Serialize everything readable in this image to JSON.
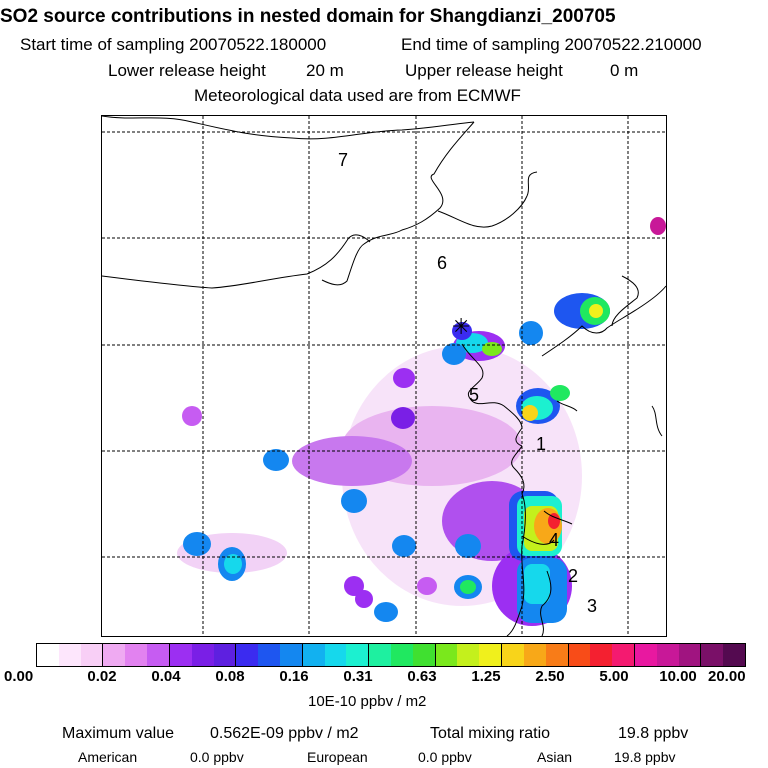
{
  "header": {
    "title": "SO2 source contributions in nested domain for Shangdianzi_200705",
    "start_label": "Start time of sampling 20070522.180000",
    "end_label": "End time of sampling 20070522.210000",
    "lower_label": "Lower release height",
    "lower_value": "20 m",
    "upper_label": "Upper release height",
    "upper_value": "0 m",
    "met_label": "Meteorological data used are from ECMWF"
  },
  "map": {
    "regions": [
      {
        "id": "7",
        "label": "7"
      },
      {
        "id": "6",
        "label": "6"
      },
      {
        "id": "5",
        "label": "5"
      },
      {
        "id": "1",
        "label": "1"
      },
      {
        "id": "4",
        "label": "4"
      },
      {
        "id": "2",
        "label": "2"
      },
      {
        "id": "3",
        "label": "3"
      }
    ],
    "receptor_symbol": "✳"
  },
  "colorbar": {
    "colors": [
      "#ffffff",
      "#fde6fc",
      "#f8cff6",
      "#efaaf2",
      "#e282f0",
      "#c65cf2",
      "#9c2ff2",
      "#7a1fe6",
      "#5e20e0",
      "#3b2bf0",
      "#1e56f0",
      "#1487f0",
      "#12b1f0",
      "#16d8ec",
      "#1cf0d0",
      "#1ef0a0",
      "#20e860",
      "#40e030",
      "#7ae81c",
      "#c4f01c",
      "#f0f01c",
      "#f8d41a",
      "#f8a818",
      "#f87c18",
      "#f84c18",
      "#f42030",
      "#f41a70",
      "#e818a0",
      "#c81898",
      "#a01480",
      "#7a1068",
      "#540a50"
    ],
    "tick_labels": [
      "0.00",
      "0.02",
      "0.04",
      "0.08",
      "0.16",
      "0.31",
      "0.63",
      "1.25",
      "2.50",
      "5.00",
      "10.00",
      "20.00"
    ],
    "units": "10E-10 ppbv / m2"
  },
  "footer": {
    "max_label": "Maximum value",
    "max_value": "0.562E-09 ppbv / m2",
    "total_label": "Total mixing ratio",
    "total_value": "19.8 ppbv",
    "american_label": "American",
    "american_value": "0.0 ppbv",
    "european_label": "European",
    "european_value": "0.0 ppbv",
    "asian_label": "Asian",
    "asian_value": "19.8 ppbv"
  }
}
